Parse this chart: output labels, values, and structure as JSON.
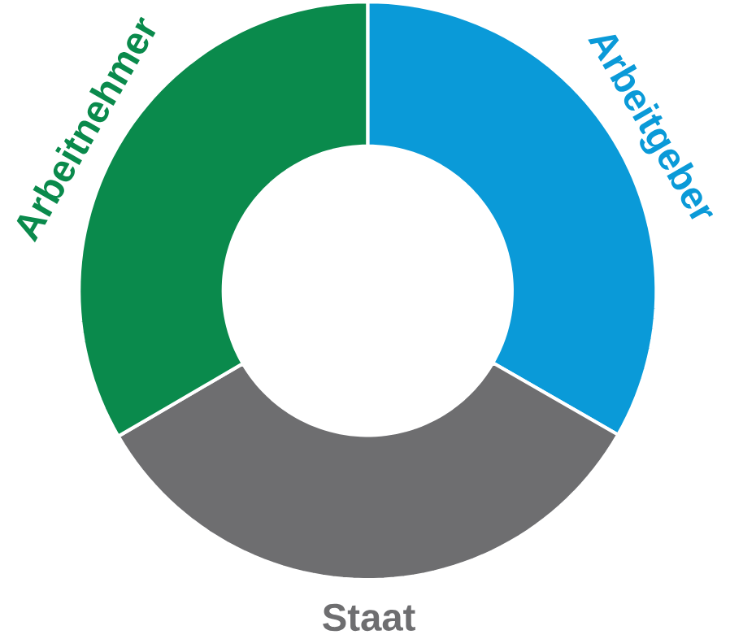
{
  "chart_data": {
    "type": "donut",
    "categories": [
      "Arbeitgeber",
      "Staat",
      "Arbeitnehmer"
    ],
    "values": [
      33.3,
      33.3,
      33.4
    ],
    "colors": [
      "#0a9ad8",
      "#6e6e70",
      "#0a8a4c"
    ]
  }
}
